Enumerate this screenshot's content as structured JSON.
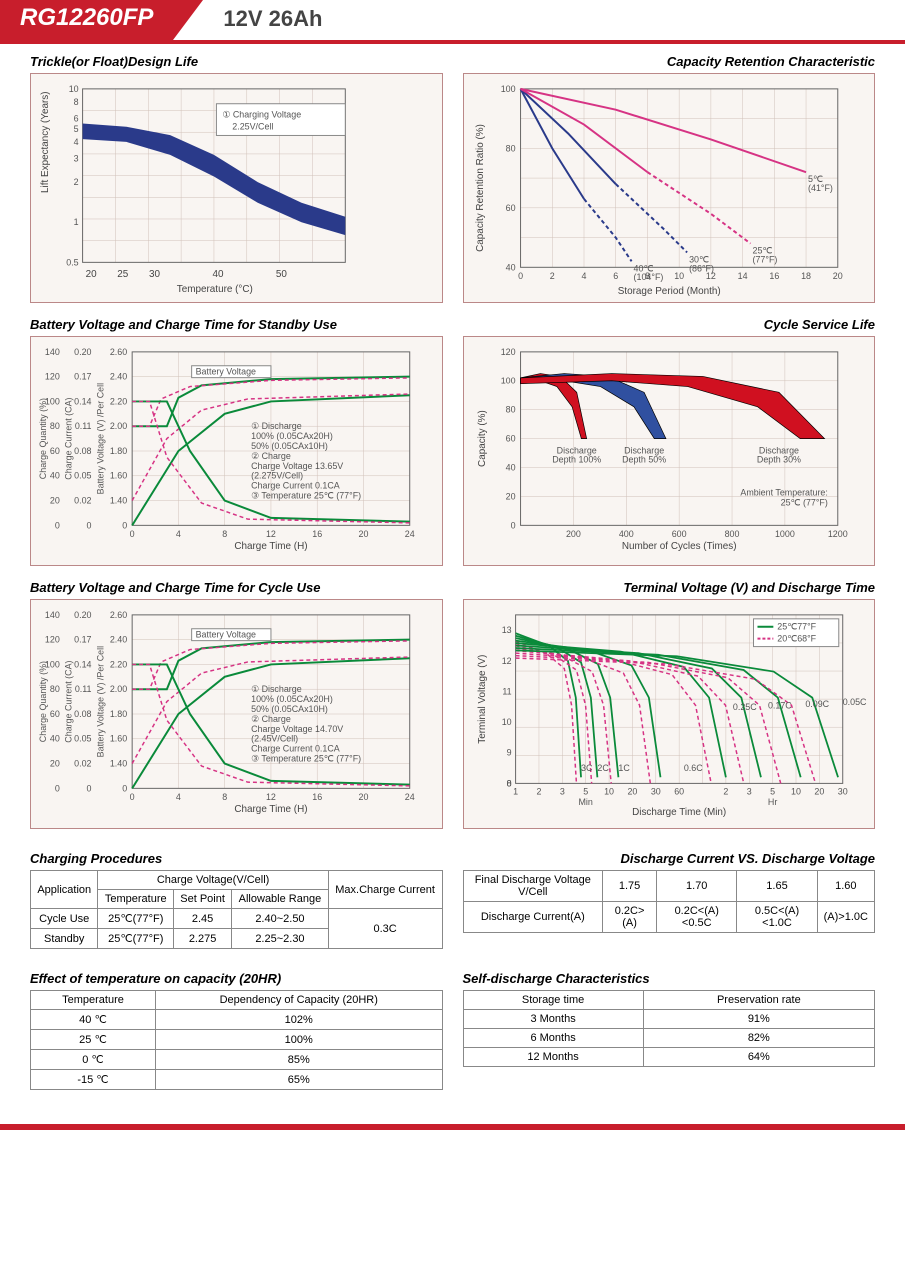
{
  "header": {
    "model": "RG12260FP",
    "spec": "12V  26Ah"
  },
  "colors": {
    "brand_red": "#c81e2c",
    "navy": "#1f2f6f",
    "dark_blue": "#2a3a8a",
    "magenta": "#d63384",
    "green": "#0a8a3a",
    "grid": "#d0c0b8",
    "frame": "#b89080",
    "bg": "#f9f5f2",
    "blue_fill": "#3050a0",
    "red_fill": "#d01020"
  },
  "chart1": {
    "title": "Trickle(or Float)Design Life",
    "xlabel": "Temperature (°C)",
    "ylabel": "Lift  Expectancy (Years)",
    "xticks": [
      "20",
      "25",
      "30",
      "40",
      "50"
    ],
    "yticks": [
      "0.5",
      "1",
      "2",
      "3",
      "4",
      "5",
      "6",
      "8",
      "10"
    ],
    "annotation": "① Charging Voltage\n    2.25V/Cell",
    "band_upper": [
      [
        20,
        5.5
      ],
      [
        25,
        5.2
      ],
      [
        30,
        4.5
      ],
      [
        35,
        3.2
      ],
      [
        40,
        2.0
      ],
      [
        45,
        1.4
      ],
      [
        50,
        1.1
      ]
    ],
    "band_lower": [
      [
        20,
        4.2
      ],
      [
        25,
        4.0
      ],
      [
        30,
        3.2
      ],
      [
        35,
        2.2
      ],
      [
        40,
        1.4
      ],
      [
        45,
        1.0
      ],
      [
        50,
        0.8
      ]
    ],
    "band_color": "#2a3a8a"
  },
  "chart2": {
    "title": "Capacity  Retention  Characteristic",
    "xlabel": "Storage Period (Month)",
    "ylabel": "Capacity Retention Ratio (%)",
    "xticks": [
      "0",
      "2",
      "4",
      "6",
      "8",
      "10",
      "12",
      "14",
      "16",
      "18",
      "20"
    ],
    "yticks": [
      "40",
      "60",
      "80",
      "100"
    ],
    "curves": [
      {
        "label": "40℃\n(104°F)",
        "color": "#2a3a8a",
        "pts": [
          [
            0,
            100
          ],
          [
            2,
            80
          ],
          [
            4,
            63
          ],
          [
            6,
            50
          ],
          [
            7,
            42
          ]
        ],
        "dash_from": 4.5
      },
      {
        "label": "30℃\n(86°F)",
        "color": "#2a3a8a",
        "pts": [
          [
            0,
            100
          ],
          [
            3,
            85
          ],
          [
            6,
            68
          ],
          [
            9,
            53
          ],
          [
            10.5,
            45
          ]
        ],
        "dash_from": 7
      },
      {
        "label": "25℃\n(77°F)",
        "color": "#d63384",
        "pts": [
          [
            0,
            100
          ],
          [
            4,
            88
          ],
          [
            8,
            72
          ],
          [
            12,
            58
          ],
          [
            14.5,
            48
          ]
        ],
        "dash_from": 9.5
      },
      {
        "label": "5℃\n(41°F)",
        "color": "#d63384",
        "pts": [
          [
            0,
            100
          ],
          [
            6,
            93
          ],
          [
            12,
            83
          ],
          [
            18,
            72
          ]
        ],
        "dash_from": 99
      }
    ]
  },
  "chart3": {
    "title": "Battery Voltage and Charge Time for Standby Use",
    "xlabel": "Charge Time (H)",
    "y1": "Charge Quantity (%)",
    "y2": "Charge Current (CA)",
    "y3": "Battery Voltage (V) /Per Cell",
    "xticks": [
      "0",
      "4",
      "8",
      "12",
      "16",
      "20",
      "24"
    ],
    "y1ticks": [
      "0",
      "20",
      "40",
      "60",
      "80",
      "100",
      "120",
      "140"
    ],
    "y2ticks": [
      "0",
      "0.02",
      "0.05",
      "0.08",
      "0.11",
      "0.14",
      "0.17",
      "0.20"
    ],
    "y3ticks": [
      "0",
      "1.40",
      "1.60",
      "1.80",
      "2.00",
      "2.20",
      "2.40",
      "2.60"
    ],
    "note": "① Discharge\n     100% (0.05CAx20H)\n     50% (0.05CAx10H)\n② Charge\n     Charge Voltage 13.65V\n     (2.275V/Cell)\n     Charge Current 0.1CA\n③ Temperature 25℃ (77°F)",
    "bv_label": "Battery Voltage",
    "cq_label": "Charge Quantity (to-Discharge Quantity)Ratio",
    "cc_label": "Charge Current"
  },
  "chart4": {
    "title": "Cycle Service Life",
    "xlabel": "Number of Cycles (Times)",
    "ylabel": "Capacity (%)",
    "xticks": [
      "200",
      "400",
      "600",
      "800",
      "1000",
      "1200"
    ],
    "yticks": [
      "0",
      "20",
      "40",
      "60",
      "80",
      "100",
      "120"
    ],
    "labels": [
      "Discharge\nDepth 100%",
      "Discharge\nDepth 50%",
      "Discharge\nDepth 30%"
    ],
    "ambient": "Ambient Temperature:\n25℃ (77°F)"
  },
  "chart5": {
    "title": "Battery Voltage and Charge Time for Cycle Use",
    "xlabel": "Charge Time (H)",
    "note": "① Discharge\n     100% (0.05CAx20H)\n     50% (0.05CAx10H)\n② Charge\n     Charge Voltage 14.70V\n     (2.45V/Cell)\n     Charge Current 0.1CA\n③ Temperature 25℃ (77°F)"
  },
  "chart6": {
    "title": "Terminal Voltage (V) and Discharge Time",
    "xlabel": "Discharge Time (Min)",
    "ylabel": "Terminal Voltage (V)",
    "yticks": [
      "0",
      "8",
      "9",
      "10",
      "11",
      "12",
      "13"
    ],
    "xticks": [
      "1",
      "2",
      "3",
      "5",
      "10",
      "20",
      "30",
      "60",
      "",
      "2",
      "3",
      "5",
      "10",
      "20",
      "30"
    ],
    "legend": [
      {
        "label": "25℃77°F",
        "color": "#0a8a3a",
        "dash": false
      },
      {
        "label": "20℃68°F",
        "color": "#d63384",
        "dash": true
      }
    ],
    "rates": [
      "3C",
      "2C",
      "1C",
      "0.6C",
      "0.25C",
      "0.17C",
      "0.09C",
      "0.05C"
    ],
    "min": "Min",
    "hr": "Hr"
  },
  "table1": {
    "title": "Charging Procedures",
    "headers": [
      "Application",
      "Charge Voltage(V/Cell)",
      "Max.Charge Current"
    ],
    "sub": [
      "Temperature",
      "Set Point",
      "Allowable Range"
    ],
    "rows": [
      [
        "Cycle Use",
        "25℃(77°F)",
        "2.45",
        "2.40~2.50"
      ],
      [
        "Standby",
        "25℃(77°F)",
        "2.275",
        "2.25~2.30"
      ]
    ],
    "max": "0.3C"
  },
  "table2": {
    "title": "Discharge Current VS. Discharge Voltage",
    "r1": [
      "Final Discharge Voltage V/Cell",
      "1.75",
      "1.70",
      "1.65",
      "1.60"
    ],
    "r2": [
      "Discharge Current(A)",
      "0.2C>(A)",
      "0.2C<(A)<0.5C",
      "0.5C<(A)<1.0C",
      "(A)>1.0C"
    ]
  },
  "table3": {
    "title": "Effect of temperature on capacity (20HR)",
    "headers": [
      "Temperature",
      "Dependency of Capacity (20HR)"
    ],
    "rows": [
      [
        "40 ℃",
        "102%"
      ],
      [
        "25 ℃",
        "100%"
      ],
      [
        "0 ℃",
        "85%"
      ],
      [
        "-15 ℃",
        "65%"
      ]
    ]
  },
  "table4": {
    "title": "Self-discharge Characteristics",
    "headers": [
      "Storage time",
      "Preservation rate"
    ],
    "rows": [
      [
        "3 Months",
        "91%"
      ],
      [
        "6 Months",
        "82%"
      ],
      [
        "12 Months",
        "64%"
      ]
    ]
  }
}
